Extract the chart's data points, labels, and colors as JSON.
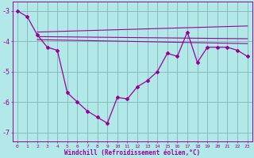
{
  "background_color": "#b3e8e8",
  "grid_color": "#88bbbb",
  "line_color": "#990099",
  "xlabel": "Windchill (Refroidissement éolien,°C)",
  "ylim": [
    -7.3,
    -2.7
  ],
  "xlim": [
    -0.5,
    23.5
  ],
  "yticks": [
    -7,
    -6,
    -5,
    -4,
    -3
  ],
  "xticks": [
    0,
    1,
    2,
    3,
    4,
    5,
    6,
    7,
    8,
    9,
    10,
    11,
    12,
    13,
    14,
    15,
    16,
    17,
    18,
    19,
    20,
    21,
    22,
    23
  ],
  "main_line_x": [
    0,
    1,
    2,
    3,
    4,
    5,
    6,
    7,
    8,
    9,
    10,
    11,
    12,
    13,
    14,
    15,
    16,
    17,
    18,
    19,
    20,
    21,
    22,
    23
  ],
  "main_line_y": [
    -3.0,
    -3.2,
    -3.8,
    -4.2,
    -4.3,
    -5.7,
    -6.0,
    -6.3,
    -6.5,
    -6.7,
    -5.85,
    -5.9,
    -5.5,
    -5.3,
    -5.0,
    -4.4,
    -4.5,
    -3.7,
    -4.7,
    -4.2,
    -4.2,
    -4.2,
    -4.3,
    -4.5
  ],
  "flat_lines": [
    {
      "x": [
        2,
        23
      ],
      "y": [
        -3.7,
        -3.5
      ]
    },
    {
      "x": [
        2,
        23
      ],
      "y": [
        -3.85,
        -3.92
      ]
    },
    {
      "x": [
        2,
        23
      ],
      "y": [
        -3.95,
        -4.08
      ]
    }
  ]
}
